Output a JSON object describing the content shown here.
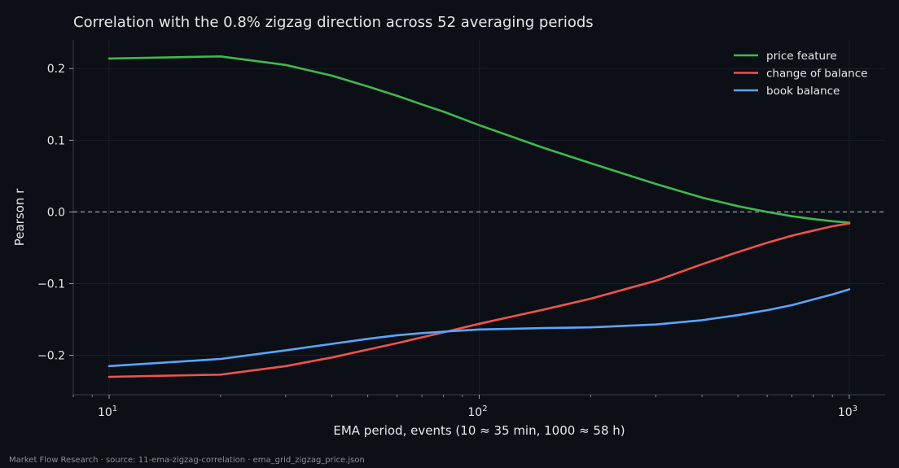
{
  "chart_data": {
    "type": "line",
    "title": "Correlation with the 0.8% zigzag direction across 52 averaging periods",
    "xlabel": "EMA period, events (10 ≈ 35 min, 1000 ≈ 58 h)",
    "ylabel": "Pearson r",
    "x_scale": "log",
    "xlim": [
      8,
      1250
    ],
    "ylim": [
      -0.255,
      0.24
    ],
    "x_ticks": [
      {
        "value": 10,
        "base": "10",
        "exp": "1"
      },
      {
        "value": 100,
        "base": "10",
        "exp": "2"
      },
      {
        "value": 1000,
        "base": "10",
        "exp": "3"
      }
    ],
    "y_ticks": [
      {
        "value": 0.2,
        "label": "0.2"
      },
      {
        "value": 0.1,
        "label": "0.1"
      },
      {
        "value": 0.0,
        "label": "0.0"
      },
      {
        "value": -0.1,
        "label": "−0.1"
      },
      {
        "value": -0.2,
        "label": "−0.2"
      }
    ],
    "reference_line": {
      "y": 0,
      "style": "dashed"
    },
    "grid": true,
    "legend_position": "top-right",
    "series": [
      {
        "name": "price feature",
        "color": "#3fb950",
        "x": [
          10,
          20,
          30,
          40,
          50,
          60,
          70,
          80,
          100,
          150,
          200,
          300,
          400,
          500,
          600,
          700,
          800,
          900,
          1000
        ],
        "y": [
          0.214,
          0.217,
          0.205,
          0.19,
          0.175,
          0.162,
          0.15,
          0.14,
          0.121,
          0.089,
          0.068,
          0.039,
          0.02,
          0.008,
          0.0,
          -0.006,
          -0.01,
          -0.013,
          -0.015
        ]
      },
      {
        "name": "change of balance",
        "color": "#f0524f",
        "x": [
          10,
          20,
          30,
          40,
          50,
          60,
          70,
          80,
          100,
          150,
          200,
          300,
          400,
          500,
          600,
          700,
          800,
          900,
          1000
        ],
        "y": [
          -0.23,
          -0.227,
          -0.215,
          -0.203,
          -0.192,
          -0.183,
          -0.175,
          -0.168,
          -0.156,
          -0.136,
          -0.121,
          -0.096,
          -0.073,
          -0.056,
          -0.043,
          -0.033,
          -0.026,
          -0.02,
          -0.016
        ]
      },
      {
        "name": "book balance",
        "color": "#58a6ff",
        "x": [
          10,
          20,
          30,
          40,
          50,
          60,
          70,
          80,
          100,
          150,
          200,
          300,
          400,
          500,
          600,
          700,
          800,
          900,
          1000
        ],
        "y": [
          -0.215,
          -0.205,
          -0.193,
          -0.184,
          -0.177,
          -0.172,
          -0.169,
          -0.167,
          -0.164,
          -0.162,
          -0.161,
          -0.157,
          -0.151,
          -0.144,
          -0.137,
          -0.13,
          -0.122,
          -0.115,
          -0.108
        ]
      }
    ]
  },
  "footer": "Market Flow Research · source: 11-ema-zigzag-correlation · ema_grid_zigzag_price.json"
}
